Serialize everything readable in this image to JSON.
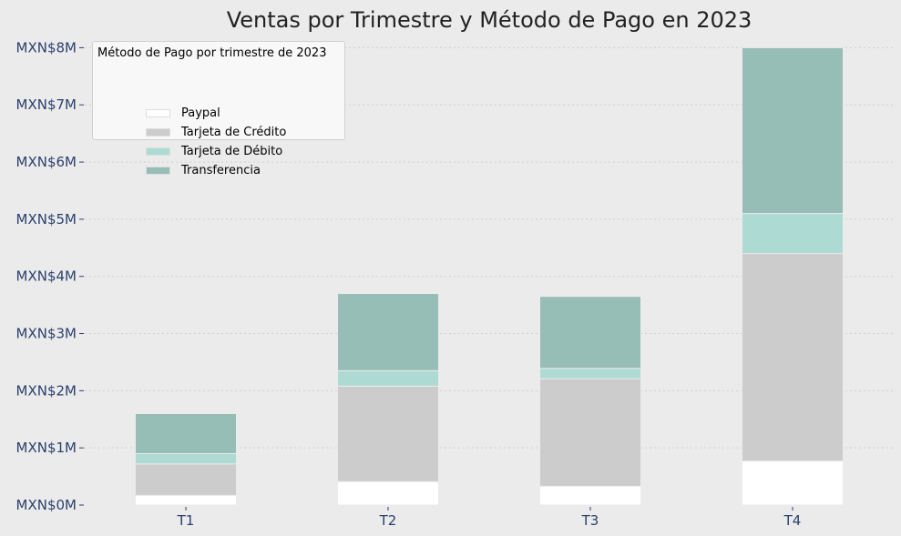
{
  "chart_data": {
    "type": "bar",
    "stacked": true,
    "title": "Ventas por Trimestre y Método de Pago en 2023",
    "xlabel": "",
    "ylabel": "",
    "categories": [
      "T1",
      "T2",
      "T3",
      "T4"
    ],
    "y_ticks": [
      "MXN$0M",
      "MXN$1M",
      "MXN$2M",
      "MXN$3M",
      "MXN$4M",
      "MXN$5M",
      "MXN$6M",
      "MXN$7M",
      "MXN$8M"
    ],
    "ylim": [
      0,
      8.15
    ],
    "unit": "millions MXN",
    "grid": "horizontal dotted",
    "legend_title": "Método de Pago por trimestre de 2023",
    "legend_position": "top-left",
    "series": [
      {
        "name": "Paypal",
        "color": "#ffffff",
        "values": [
          0.17,
          0.41,
          0.33,
          0.77
        ]
      },
      {
        "name": "Tarjeta de Crédito",
        "color": "#cccccc",
        "values": [
          0.55,
          1.67,
          1.88,
          3.63
        ]
      },
      {
        "name": "Tarjeta de Débito",
        "color": "#addbd4",
        "values": [
          0.18,
          0.27,
          0.18,
          0.7
        ]
      },
      {
        "name": "Transferencia",
        "color": "#97bdb7",
        "values": [
          0.7,
          1.35,
          1.26,
          2.9
        ]
      }
    ]
  }
}
